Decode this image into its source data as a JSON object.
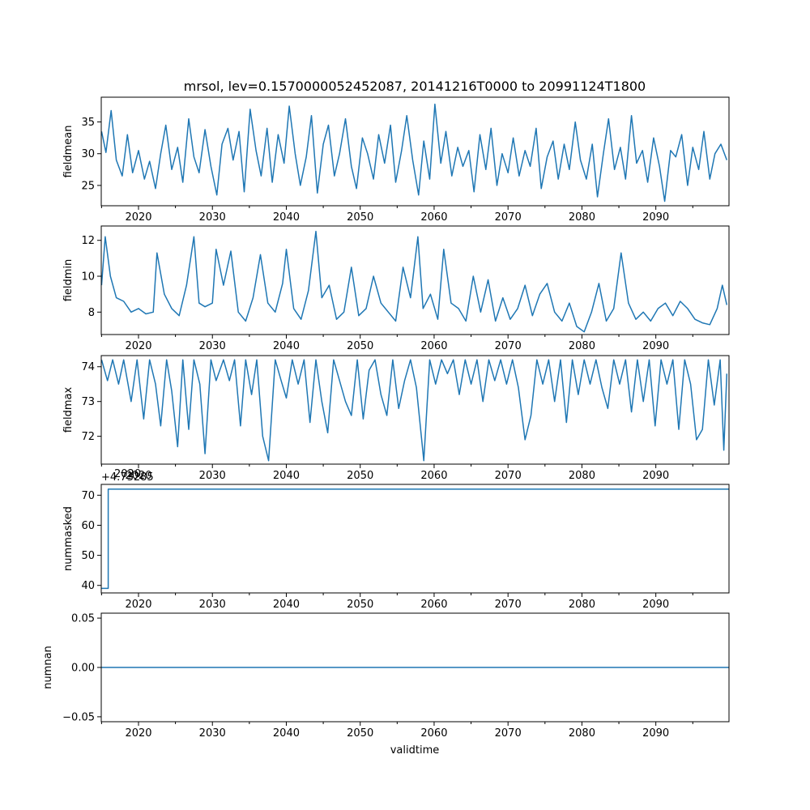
{
  "figure": {
    "title": "mrsol, lev=0.1570000052452087, 20141216T0000 to 20991124T1800",
    "xlabel": "validtime",
    "line_color": "#1f77b4"
  },
  "chart_data": [
    {
      "type": "line",
      "name": "fieldmean",
      "ylabel": "fieldmean",
      "xlim": [
        2014.96,
        2099.9
      ],
      "ylim": [
        21.8,
        38.9
      ],
      "xticks": [
        2020,
        2030,
        2040,
        2050,
        2060,
        2070,
        2080,
        2090
      ],
      "yticks": [
        25,
        30,
        35
      ],
      "offset_text": "",
      "x": [
        2015.0,
        2015.6,
        2016.3,
        2017.0,
        2017.8,
        2018.5,
        2019.2,
        2020.0,
        2020.8,
        2021.5,
        2022.3,
        2023.0,
        2023.7,
        2024.5,
        2025.3,
        2026.0,
        2026.8,
        2027.5,
        2028.2,
        2029.0,
        2029.8,
        2030.6,
        2031.3,
        2032.1,
        2032.8,
        2033.6,
        2034.3,
        2035.1,
        2035.9,
        2036.6,
        2037.4,
        2038.1,
        2038.9,
        2039.7,
        2040.4,
        2041.2,
        2041.9,
        2042.7,
        2043.4,
        2044.2,
        2045.0,
        2045.7,
        2046.5,
        2047.2,
        2048.0,
        2048.8,
        2049.5,
        2050.3,
        2051.0,
        2051.8,
        2052.5,
        2053.3,
        2054.1,
        2054.8,
        2055.6,
        2056.3,
        2057.1,
        2057.9,
        2058.6,
        2059.4,
        2060.1,
        2060.9,
        2061.6,
        2062.4,
        2063.2,
        2063.9,
        2064.7,
        2065.4,
        2066.2,
        2067.0,
        2067.7,
        2068.5,
        2069.2,
        2070.0,
        2070.7,
        2071.5,
        2072.3,
        2073.0,
        2073.8,
        2074.5,
        2075.3,
        2076.1,
        2076.8,
        2077.6,
        2078.3,
        2079.1,
        2079.8,
        2080.6,
        2081.4,
        2082.1,
        2082.9,
        2083.6,
        2084.4,
        2085.2,
        2085.9,
        2086.7,
        2087.4,
        2088.2,
        2088.9,
        2089.7,
        2090.5,
        2091.2,
        2092.0,
        2092.7,
        2093.5,
        2094.3,
        2095.0,
        2095.8,
        2096.5,
        2097.3,
        2098.0,
        2098.8,
        2099.6
      ],
      "values": [
        33.5,
        30.2,
        36.8,
        29.0,
        26.5,
        33.0,
        27.0,
        30.5,
        26.0,
        28.8,
        24.5,
        30.0,
        34.5,
        27.5,
        31.0,
        25.5,
        35.5,
        29.5,
        27.0,
        33.8,
        28.0,
        23.5,
        31.5,
        34.0,
        29.0,
        33.5,
        24.0,
        37.0,
        30.5,
        26.5,
        34.0,
        25.5,
        33.0,
        28.5,
        37.5,
        30.0,
        25.0,
        29.5,
        36.0,
        23.8,
        31.5,
        34.5,
        26.5,
        30.0,
        35.5,
        28.0,
        24.5,
        32.5,
        30.0,
        26.0,
        33.0,
        28.5,
        34.5,
        25.5,
        30.5,
        36.0,
        29.0,
        23.5,
        32.0,
        26.0,
        37.8,
        28.5,
        33.5,
        26.5,
        31.0,
        28.0,
        30.5,
        24.0,
        33.0,
        27.5,
        34.0,
        25.0,
        30.0,
        27.0,
        32.5,
        26.5,
        30.5,
        28.0,
        34.0,
        24.5,
        29.5,
        32.0,
        26.0,
        31.5,
        27.5,
        35.0,
        29.0,
        26.0,
        31.5,
        23.2,
        30.0,
        35.5,
        27.5,
        31.0,
        26.0,
        36.0,
        28.5,
        30.5,
        25.5,
        32.5,
        28.0,
        22.5,
        30.5,
        29.5,
        33.0,
        25.0,
        31.0,
        27.5,
        33.5,
        26.0,
        30.0,
        31.5,
        29.0
      ]
    },
    {
      "type": "line",
      "name": "fieldmin",
      "ylabel": "fieldmin",
      "xlim": [
        2014.96,
        2099.9
      ],
      "ylim": [
        6.75,
        12.8
      ],
      "xticks": [
        2020,
        2030,
        2040,
        2050,
        2060,
        2070,
        2080,
        2090
      ],
      "yticks": [
        8,
        10,
        12
      ],
      "offset_text": "",
      "x": [
        2015.0,
        2015.5,
        2016.2,
        2017.0,
        2018.0,
        2019.0,
        2020.0,
        2021.0,
        2022.0,
        2022.5,
        2023.5,
        2024.5,
        2025.5,
        2026.5,
        2027.5,
        2028.2,
        2029.0,
        2030.0,
        2030.5,
        2031.5,
        2032.5,
        2033.5,
        2034.5,
        2035.5,
        2036.5,
        2037.5,
        2038.5,
        2039.5,
        2040.0,
        2041.0,
        2042.0,
        2043.0,
        2044.0,
        2044.8,
        2045.8,
        2046.8,
        2047.8,
        2048.8,
        2049.8,
        2050.8,
        2051.8,
        2052.8,
        2053.8,
        2054.8,
        2055.8,
        2056.8,
        2057.8,
        2058.5,
        2059.5,
        2060.5,
        2061.3,
        2062.3,
        2063.3,
        2064.3,
        2065.3,
        2066.3,
        2067.3,
        2068.3,
        2069.3,
        2070.3,
        2071.3,
        2072.3,
        2073.3,
        2074.3,
        2075.3,
        2076.3,
        2077.3,
        2078.3,
        2079.3,
        2080.3,
        2081.3,
        2082.3,
        2083.3,
        2084.3,
        2085.3,
        2086.3,
        2087.3,
        2088.3,
        2089.3,
        2090.3,
        2091.3,
        2092.3,
        2093.3,
        2094.3,
        2095.3,
        2096.3,
        2097.3,
        2098.3,
        2099.0,
        2099.6
      ],
      "values": [
        9.5,
        12.2,
        10.0,
        8.8,
        8.6,
        8.0,
        8.2,
        7.9,
        8.0,
        11.3,
        9.0,
        8.2,
        7.8,
        9.5,
        12.2,
        8.5,
        8.3,
        8.5,
        11.5,
        9.5,
        11.4,
        8.0,
        7.5,
        8.8,
        11.2,
        8.5,
        8.0,
        9.6,
        11.5,
        8.2,
        7.6,
        9.2,
        12.5,
        8.8,
        9.5,
        7.6,
        8.0,
        10.5,
        7.8,
        8.2,
        10.0,
        8.5,
        8.0,
        7.5,
        10.5,
        8.8,
        12.2,
        8.2,
        9.0,
        7.6,
        11.5,
        8.5,
        8.2,
        7.5,
        10.0,
        8.0,
        9.8,
        7.5,
        8.8,
        7.6,
        8.2,
        9.5,
        7.8,
        9.0,
        9.6,
        8.0,
        7.5,
        8.5,
        7.2,
        6.9,
        8.0,
        9.6,
        7.5,
        8.2,
        11.3,
        8.5,
        7.6,
        8.0,
        7.5,
        8.2,
        8.5,
        7.8,
        8.6,
        8.2,
        7.6,
        7.4,
        7.3,
        8.2,
        9.5,
        8.4
      ]
    },
    {
      "type": "line",
      "name": "fieldmax",
      "ylabel": "fieldmax",
      "xlim": [
        2014.96,
        2099.9
      ],
      "ylim": [
        71.2,
        74.32
      ],
      "xticks": [
        2020,
        2030,
        2040,
        2050,
        2060,
        2070,
        2080,
        2090
      ],
      "yticks": [
        72,
        73,
        74
      ],
      "offset_text": "",
      "x": [
        2015.0,
        2015.8,
        2016.5,
        2017.3,
        2018.0,
        2019.0,
        2019.8,
        2020.7,
        2021.5,
        2022.3,
        2023.0,
        2023.8,
        2024.5,
        2025.3,
        2026.0,
        2026.8,
        2027.5,
        2028.3,
        2029.0,
        2029.8,
        2030.5,
        2031.5,
        2032.3,
        2033.0,
        2033.8,
        2034.5,
        2035.3,
        2036.0,
        2036.8,
        2037.6,
        2038.5,
        2039.3,
        2040.0,
        2040.8,
        2041.6,
        2042.4,
        2043.2,
        2044.0,
        2044.8,
        2045.6,
        2046.4,
        2047.2,
        2048.0,
        2048.8,
        2049.6,
        2050.4,
        2051.2,
        2052.0,
        2052.8,
        2053.6,
        2054.4,
        2055.2,
        2056.0,
        2056.8,
        2057.6,
        2058.6,
        2059.4,
        2060.2,
        2061.0,
        2061.8,
        2062.6,
        2063.4,
        2064.2,
        2065.0,
        2065.8,
        2066.6,
        2067.4,
        2068.2,
        2069.0,
        2069.8,
        2070.6,
        2071.4,
        2072.3,
        2073.1,
        2073.9,
        2074.7,
        2075.5,
        2076.3,
        2077.1,
        2077.9,
        2078.7,
        2079.5,
        2080.3,
        2081.1,
        2081.9,
        2082.7,
        2083.5,
        2084.3,
        2085.1,
        2085.9,
        2086.7,
        2087.5,
        2088.3,
        2089.1,
        2089.9,
        2090.7,
        2091.5,
        2092.3,
        2093.1,
        2093.9,
        2094.7,
        2095.5,
        2096.3,
        2097.1,
        2097.9,
        2098.7,
        2099.2,
        2099.6
      ],
      "values": [
        74.2,
        73.6,
        74.2,
        73.5,
        74.2,
        73.0,
        74.2,
        72.5,
        74.2,
        73.5,
        72.3,
        74.2,
        73.3,
        71.7,
        74.2,
        72.2,
        74.2,
        73.5,
        71.5,
        74.2,
        73.6,
        74.2,
        73.6,
        74.2,
        72.3,
        74.2,
        73.2,
        74.2,
        72.0,
        71.3,
        74.2,
        73.6,
        73.1,
        74.2,
        73.5,
        74.2,
        72.4,
        74.2,
        73.0,
        72.1,
        74.2,
        73.6,
        73.0,
        72.6,
        74.2,
        72.5,
        73.9,
        74.2,
        73.2,
        72.6,
        74.2,
        72.8,
        73.6,
        74.2,
        73.4,
        71.3,
        74.2,
        73.5,
        74.2,
        73.8,
        74.2,
        73.2,
        74.2,
        73.5,
        74.2,
        73.0,
        74.2,
        73.6,
        74.2,
        73.5,
        74.2,
        73.4,
        71.9,
        72.6,
        74.2,
        73.5,
        74.2,
        73.0,
        74.2,
        72.4,
        74.2,
        73.2,
        74.2,
        73.5,
        74.2,
        73.4,
        72.8,
        74.2,
        73.5,
        74.2,
        72.7,
        74.2,
        73.0,
        74.2,
        72.3,
        74.2,
        73.5,
        74.2,
        72.2,
        74.2,
        73.5,
        71.9,
        72.2,
        74.2,
        72.9,
        74.2,
        71.6,
        73.8
      ]
    },
    {
      "type": "line",
      "name": "nummasked",
      "ylabel": "nummasked",
      "xlim": [
        2014.96,
        2099.9
      ],
      "ylim": [
        37.5,
        73.6
      ],
      "xticks": [
        2020,
        2030,
        2040,
        2050,
        2060,
        2070,
        2080,
        2090
      ],
      "yticks": [
        40,
        50,
        60,
        70
      ],
      "offset_text": "+4.73285",
      "offset_extra": "2020",
      "x": [
        2014.96,
        2015.9,
        2015.9,
        2099.9
      ],
      "values": [
        39,
        39,
        72,
        72
      ]
    },
    {
      "type": "line",
      "name": "numnan",
      "ylabel": "numnan",
      "xlim": [
        2014.96,
        2099.9
      ],
      "ylim": [
        -0.055,
        0.055
      ],
      "xticks": [
        2020,
        2030,
        2040,
        2050,
        2060,
        2070,
        2080,
        2090
      ],
      "yticks": [
        -0.05,
        0.0,
        0.05
      ],
      "ytick_labels": [
        "−0.05",
        "0.00",
        "0.05"
      ],
      "offset_text": "",
      "x": [
        2014.96,
        2099.9
      ],
      "values": [
        0,
        0
      ]
    }
  ]
}
